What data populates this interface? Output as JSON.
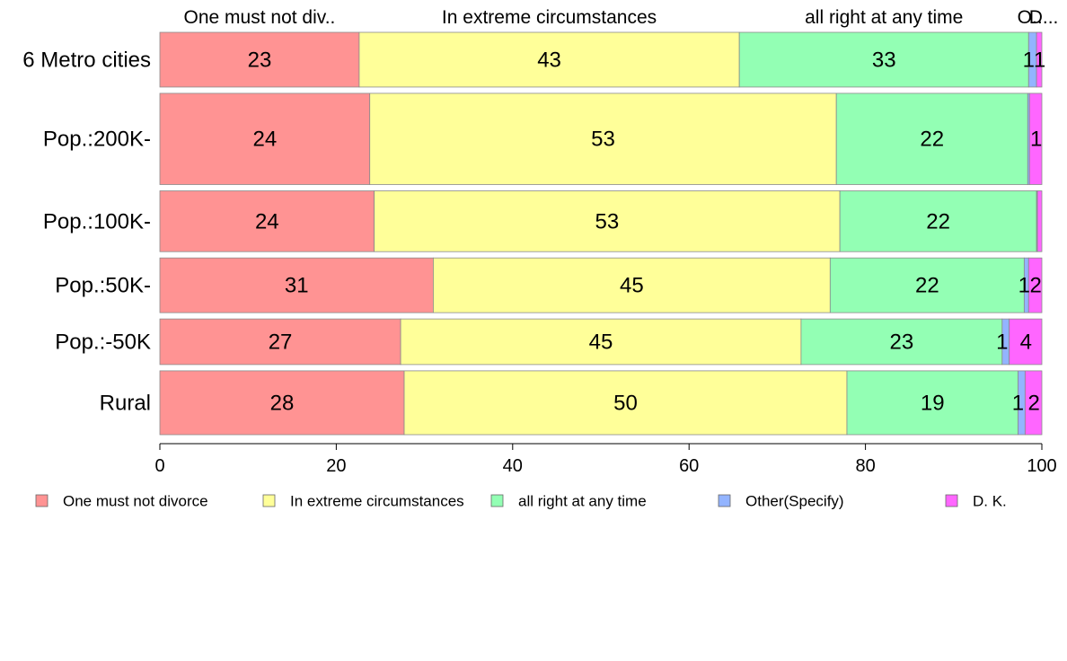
{
  "chart_data": {
    "type": "bar",
    "orientation": "horizontal",
    "stacked": true,
    "title": "",
    "xlabel": "",
    "ylabel": "",
    "xlim": [
      0,
      100
    ],
    "x_ticks": [
      0,
      20,
      40,
      60,
      80,
      100
    ],
    "grid": false,
    "legend_position": "bottom",
    "categories": [
      "6 Metro cities",
      "Pop.:200K-",
      "Pop.:100K-",
      "Pop.:50K-",
      "Pop.:-50K",
      "Rural"
    ],
    "category_weights": [
      0.9,
      1.5,
      1.0,
      0.9,
      0.75,
      1.05
    ],
    "top_labels": [
      "One must not div..",
      "In extreme circumstances",
      "all right at any time",
      "O..",
      "D..."
    ],
    "series": [
      {
        "name": "One must not divorce",
        "color": "#FF9393",
        "values": [
          22.6,
          23.8,
          24.3,
          31.0,
          27.3,
          27.7
        ],
        "labels": [
          "23",
          "24",
          "24",
          "31",
          "27",
          "28"
        ]
      },
      {
        "name": "In extreme circumstances",
        "color": "#FFFF99",
        "values": [
          43.1,
          52.9,
          52.8,
          45.0,
          45.4,
          50.2
        ],
        "labels": [
          "43",
          "53",
          "53",
          "45",
          "45",
          "50"
        ]
      },
      {
        "name": "all right at any time",
        "color": "#93FFB4",
        "values": [
          32.8,
          21.7,
          22.3,
          22.0,
          22.8,
          19.4
        ],
        "labels": [
          "33",
          "22",
          "22",
          "22",
          "23",
          "19"
        ]
      },
      {
        "name": "Other(Specify)",
        "color": "#93B4FF",
        "values": [
          0.9,
          0.2,
          0.1,
          0.5,
          0.8,
          0.8
        ],
        "labels": [
          "1",
          "",
          "",
          "1",
          "1",
          "1"
        ]
      },
      {
        "name": "D. K.",
        "color": "#FF66FF",
        "values": [
          0.6,
          1.4,
          0.5,
          1.5,
          3.7,
          1.9
        ],
        "labels": [
          "1",
          "1",
          "",
          "2",
          "4",
          "2"
        ]
      }
    ]
  }
}
